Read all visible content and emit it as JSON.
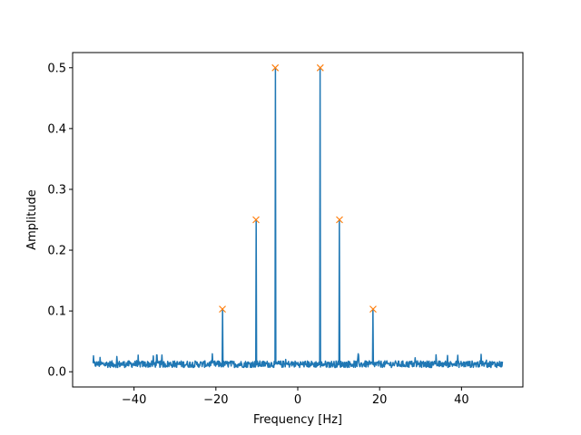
{
  "chart_data": {
    "type": "line",
    "title": "",
    "xlabel": "Frequency [Hz]",
    "ylabel": "Amplitude",
    "xlim": [
      -55,
      55
    ],
    "ylim": [
      -0.025,
      0.525
    ],
    "grid": false,
    "x_ticks": [
      -40,
      -20,
      0,
      20,
      40
    ],
    "x_tick_labels": [
      "−40",
      "−20",
      "0",
      "20",
      "40"
    ],
    "y_ticks": [
      0.0,
      0.1,
      0.2,
      0.3,
      0.4,
      0.5
    ],
    "y_tick_labels": [
      "0.0",
      "0.1",
      "0.2",
      "0.3",
      "0.4",
      "0.5"
    ],
    "spectrum": {
      "color": "#1f77b4",
      "x_range": [
        -50,
        50
      ],
      "noise_floor_range": [
        0.003,
        0.03
      ],
      "peaks": [
        {
          "x": -18.4,
          "y": 0.103
        },
        {
          "x": -10.2,
          "y": 0.25
        },
        {
          "x": -5.5,
          "y": 0.5
        },
        {
          "x": 5.5,
          "y": 0.5
        },
        {
          "x": 10.2,
          "y": 0.25
        },
        {
          "x": 18.4,
          "y": 0.103
        }
      ]
    },
    "peak_markers": {
      "color": "#ff7f0e",
      "marker": "x",
      "points": [
        {
          "x": -18.4,
          "y": 0.103
        },
        {
          "x": -10.2,
          "y": 0.25
        },
        {
          "x": -5.5,
          "y": 0.5
        },
        {
          "x": 5.5,
          "y": 0.5
        },
        {
          "x": 10.2,
          "y": 0.25
        },
        {
          "x": 18.4,
          "y": 0.103
        }
      ]
    }
  }
}
